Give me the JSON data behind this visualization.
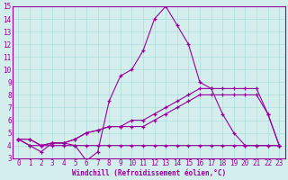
{
  "xlabel": "Windchill (Refroidissement éolien,°C)",
  "x": [
    0,
    1,
    2,
    3,
    4,
    5,
    6,
    7,
    8,
    9,
    10,
    11,
    12,
    13,
    14,
    15,
    16,
    17,
    18,
    19,
    20,
    21,
    22,
    23
  ],
  "line_main": [
    4.5,
    4.0,
    3.5,
    4.2,
    4.2,
    4.0,
    2.8,
    3.5,
    7.5,
    9.5,
    10.0,
    11.5,
    14.0,
    15.0,
    13.5,
    12.0,
    9.0,
    8.5,
    6.5,
    5.0,
    4.0,
    4.0,
    4.0,
    4.0
  ],
  "line_flat": [
    4.5,
    4.0,
    4.0,
    4.0,
    4.0,
    4.0,
    4.0,
    4.0,
    4.0,
    4.0,
    4.0,
    4.0,
    4.0,
    4.0,
    4.0,
    4.0,
    4.0,
    4.0,
    4.0,
    4.0,
    4.0,
    4.0,
    4.0,
    4.0
  ],
  "line_rise1": [
    4.5,
    4.5,
    4.0,
    4.2,
    4.2,
    4.5,
    5.0,
    5.2,
    5.5,
    5.5,
    6.0,
    6.0,
    6.5,
    7.0,
    7.5,
    8.0,
    8.5,
    8.5,
    8.5,
    8.5,
    8.5,
    8.5,
    6.5,
    4.0
  ],
  "line_rise2": [
    4.5,
    4.5,
    4.0,
    4.2,
    4.2,
    4.5,
    5.0,
    5.2,
    5.5,
    5.5,
    5.5,
    5.5,
    6.0,
    6.5,
    7.0,
    7.5,
    8.0,
    8.0,
    8.0,
    8.0,
    8.0,
    8.0,
    6.5,
    4.0
  ],
  "color": "#990099",
  "bg_color": "#d4eeee",
  "grid_color": "#aadddd",
  "ylim_min": 3,
  "ylim_max": 15,
  "xlim_min": 0,
  "xlim_max": 23,
  "tick_fontsize": 5.5,
  "label_fontsize": 5.5
}
